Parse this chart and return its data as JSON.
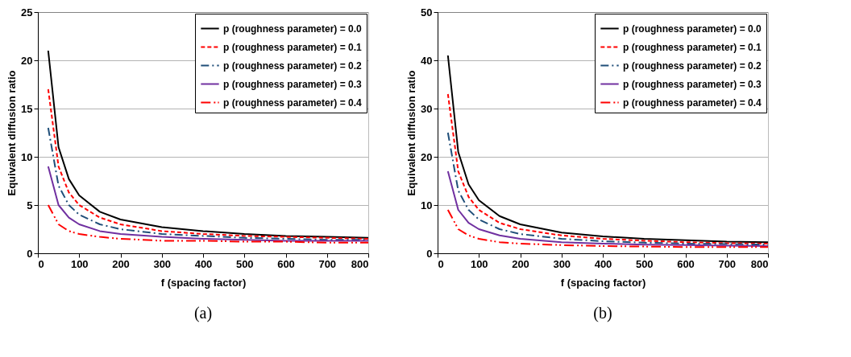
{
  "chart_data": [
    {
      "type": "line",
      "xlabel": "f (spacing factor)",
      "ylabel": "Equivalent diffusion ratio",
      "annotations": [
        "(a)"
      ],
      "x": [
        25,
        50,
        75,
        100,
        150,
        200,
        300,
        400,
        500,
        600,
        700,
        800
      ],
      "xlim": [
        0,
        800
      ],
      "xticks": [
        0,
        100,
        200,
        300,
        400,
        500,
        600,
        700,
        800
      ],
      "ylim": [
        0,
        25
      ],
      "yticks": [
        0,
        5,
        10,
        15,
        20,
        25
      ],
      "grid": "y",
      "legend": "top right",
      "marker": "none",
      "series": [
        {
          "name": "p (roughness parameter) = 0.0",
          "color": "#000000",
          "line_style": "solid",
          "values": [
            21,
            11,
            7.7,
            6,
            4.3,
            3.5,
            2.7,
            2.3,
            2,
            1.8,
            1.7,
            1.6
          ]
        },
        {
          "name": "p (roughness parameter) = 0.1",
          "color": "#ff0000",
          "line_style": "dashed",
          "values": [
            17,
            9,
            6.3,
            5,
            3.7,
            3,
            2.3,
            2,
            1.8,
            1.7,
            1.6,
            1.5
          ]
        },
        {
          "name": "p (roughness parameter) = 0.2",
          "color": "#1f4e79",
          "line_style": "dashdot",
          "values": [
            13,
            7,
            5,
            4,
            3,
            2.5,
            2,
            1.8,
            1.6,
            1.5,
            1.4,
            1.4
          ]
        },
        {
          "name": "p (roughness parameter) = 0.3",
          "color": "#7030a0",
          "line_style": "solid",
          "values": [
            9,
            5,
            3.7,
            3,
            2.3,
            2,
            1.7,
            1.5,
            1.4,
            1.3,
            1.3,
            1.3
          ]
        },
        {
          "name": "p (roughness parameter) = 0.4",
          "color": "#ff0000",
          "line_style": "dashdotdot",
          "values": [
            5,
            3,
            2.3,
            2,
            1.7,
            1.5,
            1.3,
            1.3,
            1.2,
            1.2,
            1.1,
            1.1
          ]
        }
      ]
    },
    {
      "type": "line",
      "xlabel": "f (spacing factor)",
      "ylabel": "Equivalent diffusion ratio",
      "annotations": [
        "(b)"
      ],
      "x": [
        25,
        50,
        75,
        100,
        150,
        200,
        300,
        400,
        500,
        600,
        700,
        800
      ],
      "xlim": [
        0,
        800
      ],
      "xticks": [
        0,
        100,
        200,
        300,
        400,
        500,
        600,
        700,
        800
      ],
      "ylim": [
        0,
        50
      ],
      "yticks": [
        0,
        10,
        20,
        30,
        40,
        50
      ],
      "grid": "y",
      "legend": "top right",
      "marker": "none",
      "series": [
        {
          "name": "p (roughness parameter) = 0.0",
          "color": "#000000",
          "line_style": "solid",
          "values": [
            41,
            21,
            14.3,
            11,
            7.7,
            6,
            4.3,
            3.5,
            3,
            2.7,
            2.4,
            2.3
          ]
        },
        {
          "name": "p (roughness parameter) = 0.1",
          "color": "#ff0000",
          "line_style": "dashed",
          "values": [
            33,
            17,
            11.7,
            9,
            6.3,
            5,
            3.7,
            3,
            2.6,
            2.3,
            2.1,
            2
          ]
        },
        {
          "name": "p (roughness parameter) = 0.2",
          "color": "#1f4e79",
          "line_style": "dashdot",
          "values": [
            25,
            13,
            9,
            7,
            5,
            4,
            3,
            2.5,
            2.2,
            2,
            1.9,
            1.8
          ]
        },
        {
          "name": "p (roughness parameter) = 0.3",
          "color": "#7030a0",
          "line_style": "solid",
          "values": [
            17,
            9,
            6.3,
            5,
            3.7,
            3,
            2.3,
            2,
            1.8,
            1.7,
            1.6,
            1.5
          ]
        },
        {
          "name": "p (roughness parameter) = 0.4",
          "color": "#ff0000",
          "line_style": "dashdotdot",
          "values": [
            9,
            5,
            3.7,
            3,
            2.3,
            2,
            1.7,
            1.5,
            1.4,
            1.3,
            1.3,
            1.3
          ]
        }
      ]
    }
  ]
}
